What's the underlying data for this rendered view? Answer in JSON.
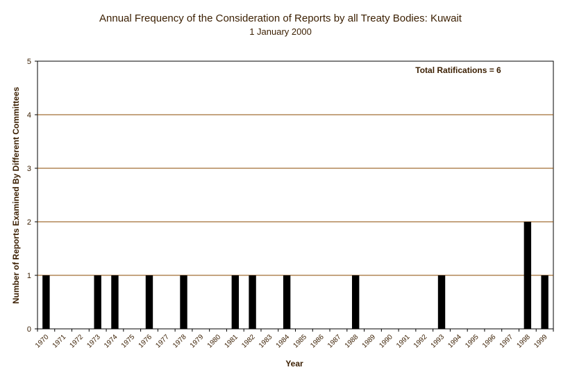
{
  "chart_data": {
    "type": "bar",
    "title": "Annual Frequency of the Consideration of Reports by all Treaty Bodies: Kuwait",
    "subtitle": "1 January 2000",
    "xlabel": "Year",
    "ylabel": "Number of Reports Examined By Different Committees",
    "annotation": "Total Ratifications = 6",
    "ylim": [
      0,
      5
    ],
    "yticks": [
      0,
      1,
      2,
      3,
      4,
      5
    ],
    "grid": true,
    "colors": {
      "bar": "#000000",
      "grid": "#8b4a00",
      "axis_text": "#3a1e00",
      "plot_bg": "#ffffff"
    },
    "categories": [
      "1970",
      "1971",
      "1972",
      "1973",
      "1974",
      "1975",
      "1976",
      "1977",
      "1978",
      "1979",
      "1980",
      "1981",
      "1982",
      "1983",
      "1984",
      "1985",
      "1986",
      "1987",
      "1988",
      "1989",
      "1990",
      "1991",
      "1992",
      "1993",
      "1994",
      "1995",
      "1996",
      "1997",
      "1998",
      "1999"
    ],
    "values": [
      1,
      0,
      0,
      1,
      1,
      0,
      1,
      0,
      1,
      0,
      0,
      1,
      1,
      0,
      1,
      0,
      0,
      0,
      1,
      0,
      0,
      0,
      0,
      1,
      0,
      0,
      0,
      0,
      2,
      1
    ]
  }
}
